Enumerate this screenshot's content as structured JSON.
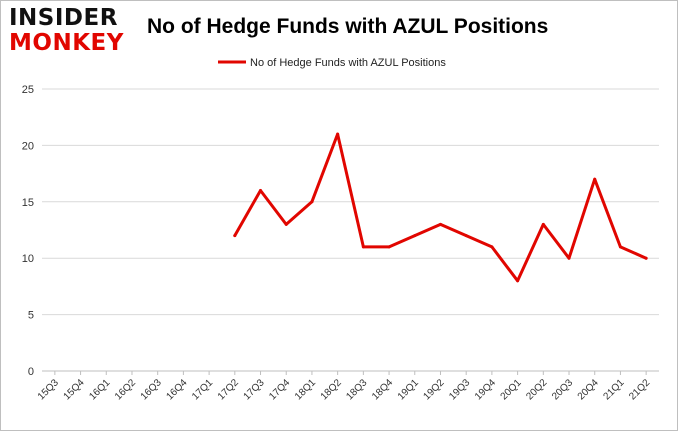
{
  "header": {
    "logo_line1": "INSIDER",
    "logo_line2": "MONKEY",
    "title": "No of Hedge Funds with AZUL Positions"
  },
  "colors": {
    "series": "#e10600",
    "grid": "#d9d9d9",
    "logo_dark": "#111111",
    "logo_red": "#e10600"
  },
  "chart_data": {
    "type": "line",
    "title": "No of Hedge Funds with AZUL Positions",
    "legend_position": "top-center",
    "grid": true,
    "categories": [
      "15Q3",
      "15Q4",
      "16Q1",
      "16Q2",
      "16Q3",
      "16Q4",
      "17Q1",
      "17Q2",
      "17Q3",
      "17Q4",
      "18Q1",
      "18Q2",
      "18Q3",
      "18Q4",
      "19Q1",
      "19Q2",
      "19Q3",
      "19Q4",
      "20Q1",
      "20Q2",
      "20Q3",
      "20Q4",
      "21Q1",
      "21Q2"
    ],
    "series": [
      {
        "name": "No of Hedge Funds with AZUL Positions",
        "values": [
          null,
          null,
          null,
          null,
          null,
          null,
          null,
          12,
          16,
          13,
          15,
          21,
          11,
          11,
          12,
          13,
          12,
          11,
          8,
          13,
          10,
          17,
          11,
          10
        ]
      }
    ],
    "ylim": [
      0,
      25
    ],
    "yticks": [
      0,
      5,
      10,
      15,
      20,
      25
    ]
  }
}
